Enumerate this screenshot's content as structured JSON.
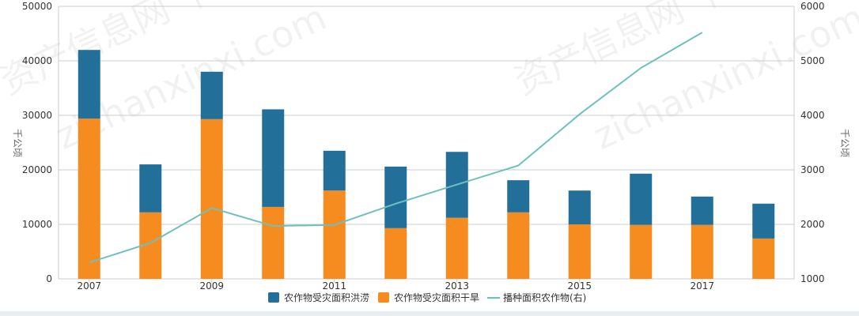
{
  "chart_data": {
    "type": "bar",
    "stacked": true,
    "x": [
      2007,
      2008,
      2009,
      2010,
      2011,
      2012,
      2013,
      2014,
      2015,
      2016,
      2017,
      2018
    ],
    "x_tick_labels": [
      "2007",
      "2009",
      "2011",
      "2013",
      "2015",
      "2017"
    ],
    "series": [
      {
        "name": "农作物受灾面积干旱",
        "axis": "left",
        "chart_type": "bar",
        "color": "#f68b1f",
        "values": [
          29400,
          12200,
          29300,
          13200,
          16200,
          9300,
          11200,
          12200,
          10000,
          9900,
          9900,
          7400
        ]
      },
      {
        "name": "农作物受灾面积洪涝",
        "axis": "left",
        "chart_type": "bar",
        "color": "#22709a",
        "values": [
          12600,
          8800,
          8700,
          17900,
          7300,
          11300,
          12100,
          5900,
          6200,
          9400,
          5200,
          6400
        ]
      },
      {
        "name": "播种面积农作物(右)",
        "axis": "right",
        "chart_type": "line",
        "color": "#6ec0bd",
        "values": [
          1300,
          1660,
          2300,
          1970,
          1990,
          2380,
          2730,
          3080,
          4020,
          4870,
          5520,
          null
        ]
      }
    ],
    "left_axis": {
      "label": "千公顷",
      "min": 0,
      "max": 50000,
      "ticks": [
        0,
        10000,
        20000,
        30000,
        40000,
        50000
      ]
    },
    "right_axis": {
      "label": "千公顷",
      "min": 1000,
      "max": 6000,
      "ticks": [
        1000,
        2000,
        3000,
        4000,
        5000,
        6000
      ]
    },
    "legend": {
      "position": "bottom",
      "items": [
        "农作物受灾面积洪涝",
        "农作物受灾面积干旱",
        "播种面积农作物(右)"
      ]
    },
    "grid": true
  },
  "watermark": {
    "lines": [
      "资产信息网 千际投行",
      "zichanxinxi.com"
    ],
    "color": "#cccccc"
  },
  "colors": {
    "grid": "#c8cdd3",
    "axis": "#c8cdd3",
    "legend_flood": "#22709a",
    "legend_drought": "#f68b1f",
    "legend_line": "#6ec0bd"
  }
}
